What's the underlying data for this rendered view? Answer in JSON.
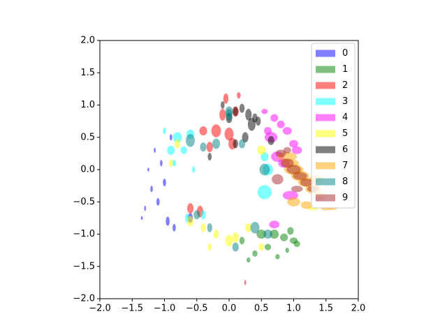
{
  "chart_data": {
    "type": "scatter",
    "marker": "ellipse",
    "alpha": 0.5,
    "legend": "upper right",
    "xlim": [
      -2,
      2
    ],
    "ylim": [
      -2,
      2
    ],
    "xticks": [
      {
        "value": -2,
        "label": "−2.0"
      },
      {
        "value": -1.5,
        "label": "−1.5"
      },
      {
        "value": -1,
        "label": "−1.0"
      },
      {
        "value": -0.5,
        "label": "−0.5"
      },
      {
        "value": 0,
        "label": "0.0"
      },
      {
        "value": 0.5,
        "label": "0.5"
      },
      {
        "value": 1,
        "label": "1.0"
      },
      {
        "value": 1.5,
        "label": "1.5"
      },
      {
        "value": 2,
        "label": "2.0"
      }
    ],
    "yticks": [
      {
        "value": -2,
        "label": "−2.0"
      },
      {
        "value": -1.5,
        "label": "−1.5"
      },
      {
        "value": -1,
        "label": "−1.0"
      },
      {
        "value": -0.5,
        "label": "−0.5"
      },
      {
        "value": 0,
        "label": "0.0"
      },
      {
        "value": 0.5,
        "label": "0.5"
      },
      {
        "value": 1,
        "label": "1.0"
      },
      {
        "value": 1.5,
        "label": "1.5"
      },
      {
        "value": 2,
        "label": "2.0"
      }
    ],
    "series": [
      {
        "name": "0",
        "color": "blue",
        "x": [
          -1.3,
          -1.2,
          -1.1,
          -1.25,
          -1.0,
          -0.95,
          -1.15,
          -0.9,
          -0.6,
          -0.85,
          -1.35,
          -1.05
        ],
        "y": [
          -0.6,
          -0.3,
          -0.5,
          0.0,
          -0.2,
          -0.8,
          0.3,
          0.5,
          -0.75,
          -0.9,
          -0.75,
          0.1
        ],
        "width": [
          0.03,
          0.04,
          0.05,
          0.03,
          0.05,
          0.06,
          0.03,
          0.04,
          0.08,
          0.05,
          0.03,
          0.04
        ],
        "height": [
          0.08,
          0.1,
          0.12,
          0.06,
          0.12,
          0.14,
          0.08,
          0.1,
          0.15,
          0.12,
          0.06,
          0.1
        ]
      },
      {
        "name": "1",
        "color": "green",
        "x": [
          0.7,
          0.85,
          0.95,
          1.0,
          0.6,
          0.4,
          0.3,
          0.75,
          1.05,
          0.5,
          0.9,
          0.2
        ],
        "y": [
          -1.0,
          -1.05,
          -0.95,
          -1.1,
          -1.2,
          -1.3,
          -1.4,
          -1.35,
          -1.15,
          -1.0,
          -1.25,
          -1.1
        ],
        "width": [
          0.14,
          0.12,
          0.1,
          0.12,
          0.1,
          0.08,
          0.06,
          0.07,
          0.1,
          0.15,
          0.06,
          0.08
        ],
        "height": [
          0.14,
          0.12,
          0.12,
          0.1,
          0.1,
          0.1,
          0.08,
          0.08,
          0.1,
          0.14,
          0.08,
          0.12
        ]
      },
      {
        "name": "2",
        "color": "red",
        "x": [
          -0.2,
          0.0,
          0.1,
          -0.05,
          -0.1,
          0.05,
          -0.3,
          -0.4,
          0.15,
          -0.6,
          -0.45,
          0.25
        ],
        "y": [
          0.6,
          0.55,
          0.9,
          1.1,
          0.85,
          0.4,
          0.35,
          0.6,
          1.15,
          -0.6,
          -0.65,
          -1.75
        ],
        "width": [
          0.15,
          0.14,
          0.1,
          0.08,
          0.1,
          0.12,
          0.1,
          0.12,
          0.06,
          0.1,
          0.1,
          0.03
        ],
        "height": [
          0.2,
          0.2,
          0.16,
          0.16,
          0.18,
          0.18,
          0.16,
          0.14,
          0.1,
          0.16,
          0.18,
          0.08
        ]
      },
      {
        "name": "3",
        "color": "cyan",
        "x": [
          -0.8,
          -0.9,
          -0.6,
          -0.7,
          -1.0,
          0.55,
          -0.65,
          -0.85,
          -0.55,
          0.6,
          -0.4,
          0.55
        ],
        "y": [
          0.5,
          0.3,
          0.55,
          0.3,
          0.6,
          -0.35,
          -0.75,
          0.1,
          0.0,
          0.0,
          -0.7,
          0.2
        ],
        "width": [
          0.14,
          0.12,
          0.12,
          0.1,
          0.05,
          0.22,
          0.06,
          0.06,
          0.05,
          0.16,
          0.08,
          0.12
        ],
        "height": [
          0.16,
          0.14,
          0.14,
          0.12,
          0.1,
          0.22,
          0.14,
          0.1,
          0.1,
          0.18,
          0.14,
          0.14
        ]
      },
      {
        "name": "4",
        "color": "magenta",
        "x": [
          0.7,
          0.8,
          0.9,
          0.65,
          1.0,
          1.05,
          0.75,
          0.55,
          0.95,
          0.7,
          0.85,
          0.6
        ],
        "y": [
          0.8,
          0.7,
          0.6,
          0.5,
          0.4,
          0.3,
          0.2,
          0.9,
          -0.4,
          -0.85,
          0.1,
          0.6
        ],
        "width": [
          0.12,
          0.12,
          0.14,
          0.2,
          0.14,
          0.16,
          0.2,
          0.1,
          0.24,
          0.16,
          0.18,
          0.12
        ],
        "height": [
          0.12,
          0.12,
          0.12,
          0.16,
          0.12,
          0.12,
          0.16,
          0.08,
          0.14,
          0.12,
          0.14,
          0.12
        ]
      },
      {
        "name": "5",
        "color": "yellow",
        "x": [
          -0.6,
          -0.4,
          -0.2,
          0.0,
          0.1,
          0.3,
          0.5,
          -0.8,
          -0.9,
          0.5,
          1.3,
          -0.3
        ],
        "y": [
          -0.8,
          -0.9,
          -1.0,
          -1.1,
          -1.05,
          -0.9,
          0.3,
          0.4,
          0.1,
          -1.2,
          -0.6,
          -1.2
        ],
        "width": [
          0.1,
          0.08,
          0.08,
          0.12,
          0.1,
          0.1,
          0.14,
          0.08,
          0.06,
          0.08,
          0.16,
          0.06
        ],
        "height": [
          0.16,
          0.14,
          0.14,
          0.18,
          0.16,
          0.14,
          0.14,
          0.14,
          0.12,
          0.12,
          0.06,
          0.12
        ]
      },
      {
        "name": "6",
        "color": "black",
        "x": [
          0.0,
          0.1,
          0.2,
          0.3,
          0.35,
          0.25,
          0.4,
          -0.1,
          0.45,
          0.65,
          0.1,
          -0.3
        ],
        "y": [
          0.8,
          0.9,
          0.95,
          0.85,
          0.7,
          0.5,
          0.8,
          1.0,
          0.75,
          0.45,
          0.4,
          0.2
        ],
        "width": [
          0.1,
          0.08,
          0.08,
          0.1,
          0.12,
          0.1,
          0.08,
          0.06,
          0.08,
          0.1,
          0.08,
          0.06
        ],
        "height": [
          0.16,
          0.14,
          0.14,
          0.18,
          0.2,
          0.16,
          0.14,
          0.12,
          0.14,
          0.14,
          0.14,
          0.12
        ]
      },
      {
        "name": "7",
        "color": "orange",
        "x": [
          0.9,
          1.0,
          1.1,
          1.2,
          1.3,
          1.4,
          1.5,
          1.0,
          1.2,
          1.6,
          0.95,
          1.35
        ],
        "y": [
          0.2,
          0.0,
          -0.1,
          -0.2,
          -0.3,
          -0.4,
          -0.6,
          -0.5,
          -0.55,
          -0.6,
          0.1,
          -0.15
        ],
        "width": [
          0.3,
          0.3,
          0.28,
          0.26,
          0.24,
          0.2,
          0.16,
          0.2,
          0.18,
          0.14,
          0.26,
          0.22
        ],
        "height": [
          0.14,
          0.16,
          0.16,
          0.14,
          0.14,
          0.1,
          0.06,
          0.14,
          0.12,
          0.05,
          0.12,
          0.12
        ]
      },
      {
        "name": "8",
        "color": "teal",
        "x": [
          -0.6,
          -0.4,
          -0.2,
          0.0,
          0.2,
          0.4,
          0.6,
          -0.5,
          0.1,
          0.0,
          -0.3,
          0.55
        ],
        "y": [
          0.45,
          0.35,
          0.4,
          0.9,
          0.4,
          -0.9,
          -1.0,
          -0.7,
          -1.2,
          0.85,
          -0.9,
          0.0
        ],
        "width": [
          0.14,
          0.1,
          0.12,
          0.12,
          0.1,
          0.14,
          0.14,
          0.1,
          0.1,
          0.1,
          0.08,
          0.16
        ],
        "height": [
          0.2,
          0.14,
          0.16,
          0.16,
          0.14,
          0.18,
          0.14,
          0.14,
          0.14,
          0.18,
          0.14,
          0.18
        ]
      },
      {
        "name": "9",
        "color": "brown",
        "x": [
          0.8,
          0.9,
          1.0,
          1.1,
          1.2,
          1.3,
          0.75,
          1.4,
          0.9,
          1.05
        ],
        "y": [
          0.25,
          0.1,
          0.0,
          -0.1,
          -0.2,
          -0.3,
          -0.15,
          -0.45,
          0.3,
          -0.3
        ],
        "width": [
          0.16,
          0.2,
          0.22,
          0.22,
          0.2,
          0.18,
          0.18,
          0.16,
          0.12,
          0.18
        ],
        "height": [
          0.12,
          0.14,
          0.14,
          0.12,
          0.12,
          0.1,
          0.16,
          0.08,
          0.1,
          0.1
        ]
      }
    ]
  }
}
